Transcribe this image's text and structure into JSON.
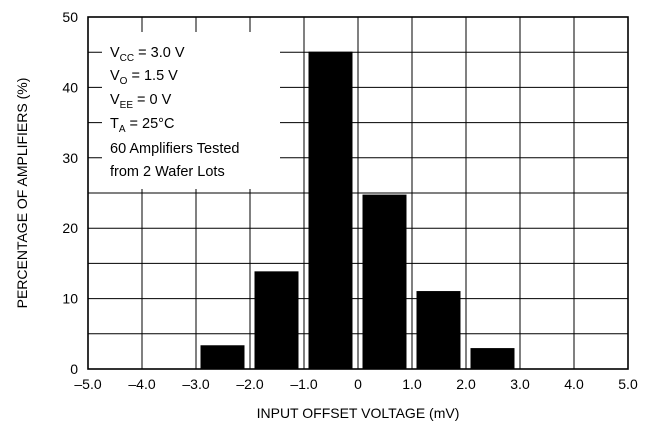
{
  "chart_data": {
    "type": "bar",
    "title": "",
    "xlabel": "INPUT OFFSET VOLTAGE (mV)",
    "ylabel": "PERCENTAGE OF AMPLIFIERS (%)",
    "xlim": [
      -5.0,
      5.0
    ],
    "ylim": [
      0,
      50
    ],
    "xticks": [
      "-5.0",
      "-4.0",
      "-3.0",
      "-2.0",
      "-1.0",
      "0",
      "1.0",
      "2.0",
      "3.0",
      "4.0",
      "5.0"
    ],
    "yticks": [
      "0",
      "10",
      "20",
      "30",
      "40",
      "50"
    ],
    "grid": true,
    "legend": "none",
    "bin_width_mV": 1.0,
    "bars": [
      {
        "bin": [
          -3.0,
          -2.0
        ],
        "value": 3.3
      },
      {
        "bin": [
          -2.0,
          -1.0
        ],
        "value": 13.8
      },
      {
        "bin": [
          -1.0,
          0.0
        ],
        "value": 45.0
      },
      {
        "bin": [
          0.0,
          1.0
        ],
        "value": 24.7
      },
      {
        "bin": [
          1.0,
          2.0
        ],
        "value": 11.0
      },
      {
        "bin": [
          2.0,
          3.0
        ],
        "value": 2.9
      }
    ],
    "bar_color": "#000000",
    "annotation": {
      "vcc": {
        "prefix": "V",
        "sub": "CC",
        "text": " = 3.0 V"
      },
      "vo": {
        "prefix": "V",
        "sub": "O",
        "text": " = 1.5 V"
      },
      "vee": {
        "prefix": "V",
        "sub": "EE",
        "text": " = 0 V"
      },
      "ta": {
        "prefix": "T",
        "sub": "A",
        "text": " = 25°C"
      },
      "line5": "60 Amplifiers Tested",
      "line6": "from 2 Wafer Lots"
    }
  }
}
